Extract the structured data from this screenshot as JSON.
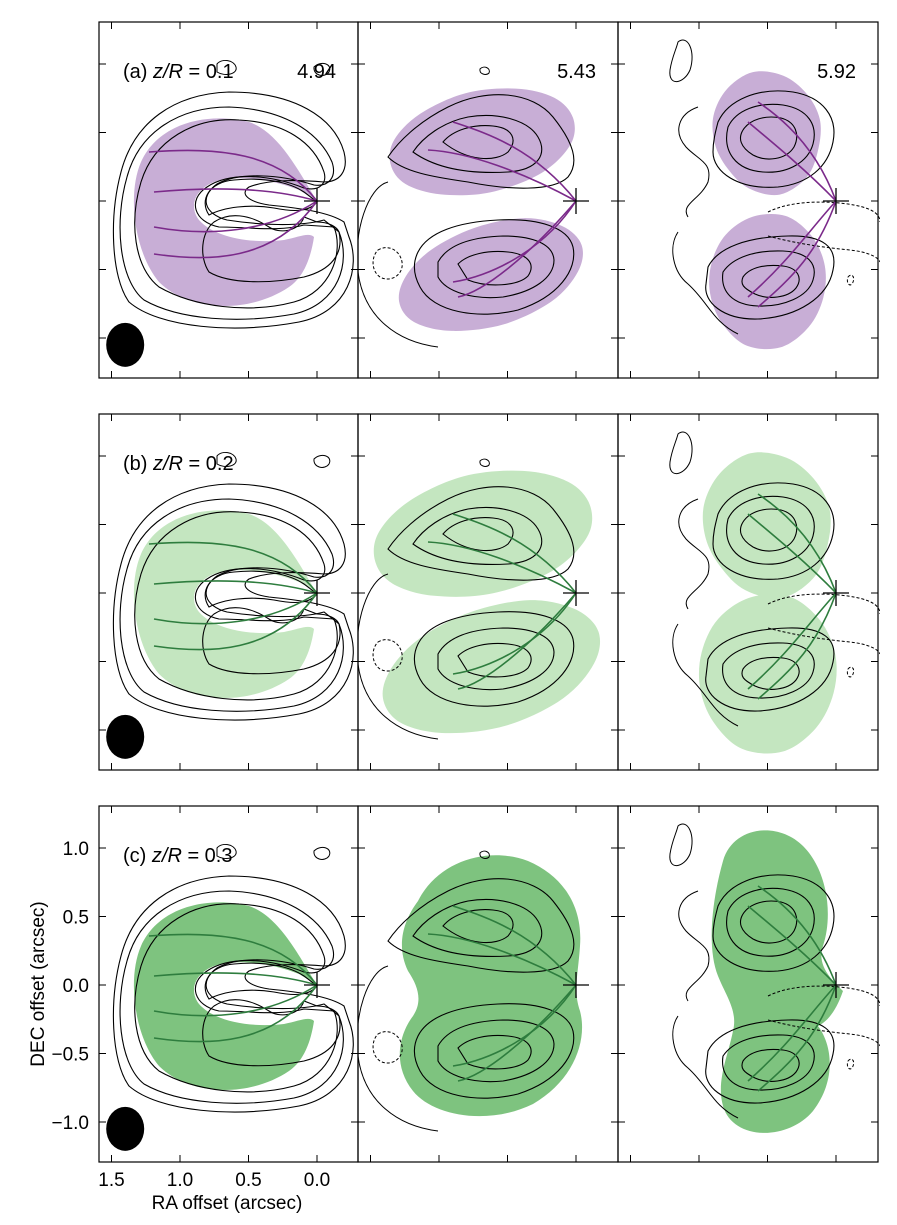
{
  "chart_data": {
    "type": "channel-map contour grid",
    "rows": [
      {
        "label_prefix": "(a) ",
        "label_var": "z/R",
        "label_value": " = 0.1",
        "model_color": "#c8aed6",
        "curve_color": "#7b2a8a"
      },
      {
        "label_prefix": "(b) ",
        "label_var": "z/R",
        "label_value": " = 0.2",
        "model_color": "#c4e6c0",
        "curve_color": "#2e7d3e"
      },
      {
        "label_prefix": "(c) ",
        "label_var": "z/R",
        "label_value": " = 0.3",
        "model_color": "#7ec37f",
        "curve_color": "#2e7d3e"
      }
    ],
    "velocities": [
      "4.94",
      "5.43",
      "5.92"
    ],
    "xlabel": "RA offset (arcsec)",
    "ylabel": "DEC offset (arcsec)",
    "xticks": [
      "1.5",
      "1.0",
      "0.5",
      "0.0"
    ],
    "yticks": [
      "1.0",
      "0.5",
      "0.0",
      "−0.5",
      "−1.0"
    ],
    "xlim": [
      1.6,
      -0.2
    ],
    "ylim": [
      -1.3,
      1.3
    ]
  }
}
